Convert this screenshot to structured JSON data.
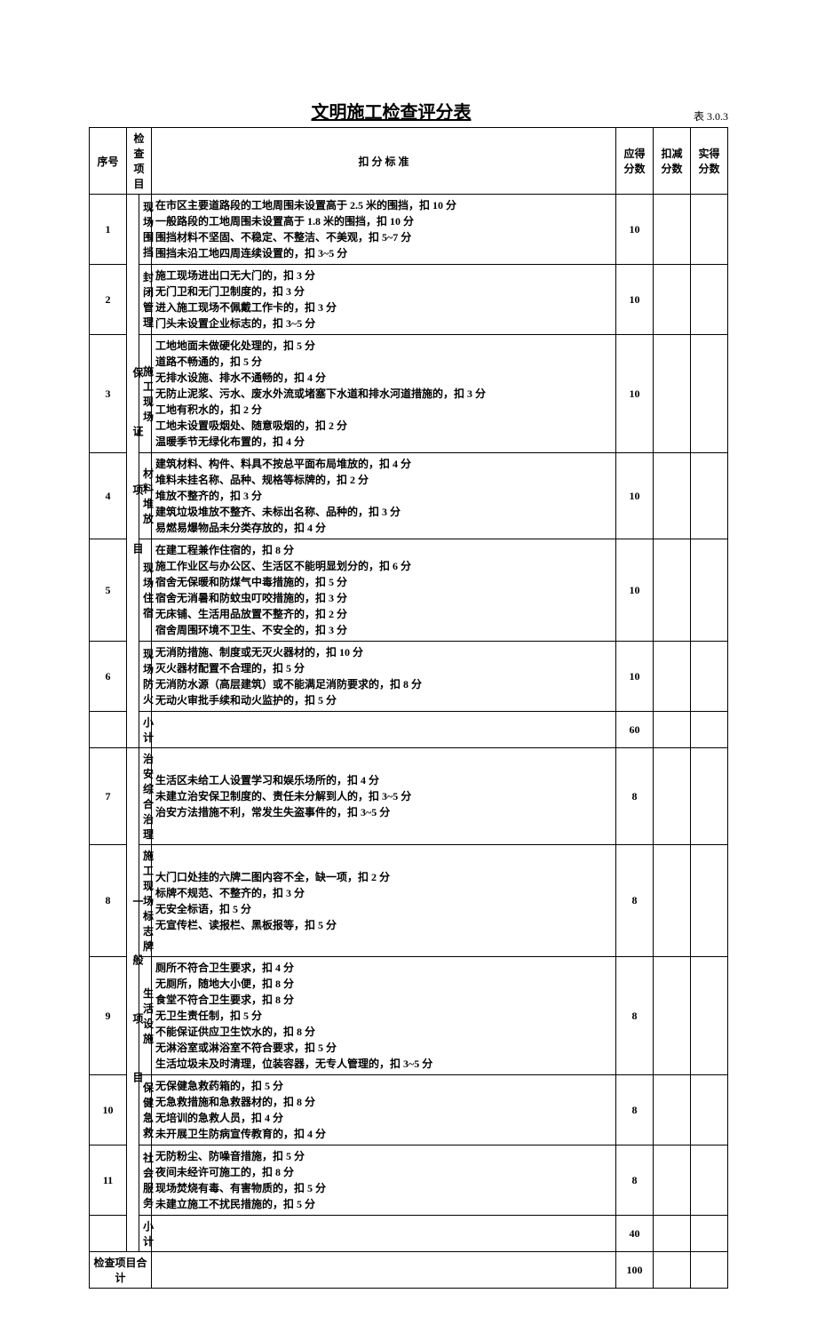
{
  "title": "文明施工检查评分表",
  "table_code": "表 3.0.3",
  "headers": {
    "seq": "序号",
    "inspect": "检查项目",
    "criteria": "扣 分 标 准",
    "should": "应得分数",
    "deduct": "扣减分数",
    "actual": "实得分数"
  },
  "group1": {
    "category": "保  证  项  目",
    "rows": [
      {
        "seq": "1",
        "item": "现场围挡",
        "criteria": "在市区主要道路段的工地周围未设置高于 2.5 米的围挡，扣 10 分\n一般路段的工地周围未设置高于 1.8 米的围挡，扣 10 分\n围挡材料不坚固、不稳定、不整洁、不美观，扣 5~7 分\n围挡未沿工地四周连续设置的，扣 3~5 分",
        "score": "10"
      },
      {
        "seq": "2",
        "item": "封闭管理",
        "criteria": "施工现场进出口无大门的，扣 3 分\n无门卫和无门卫制度的，扣 3 分\n进入施工现场不佩戴工作卡的，扣 3 分\n门头未设置企业标志的，扣 3~5 分",
        "score": "10"
      },
      {
        "seq": "3",
        "item": "施工现场",
        "criteria": "工地地面未做硬化处理的，扣 5 分\n道路不畅通的，扣 5 分\n无排水设施、排水不通畅的，扣 4 分\n无防止泥浆、污水、废水外流或堵塞下水道和排水河道措施的，扣 3 分\n工地有积水的，扣 2 分\n工地未设置吸烟处、随意吸烟的，扣 2 分\n温暖季节无绿化布置的，扣 4 分",
        "score": "10"
      },
      {
        "seq": "4",
        "item": "材料堆放",
        "criteria": "建筑材料、构件、料具不按总平面布局堆放的，扣 4 分\n堆料未挂名称、品种、规格等标牌的，扣 2 分\n堆放不整齐的，扣 3 分\n建筑垃圾堆放不整齐、未标出名称、品种的，扣 3 分\n易燃易爆物品未分类存放的，扣 4 分",
        "score": "10"
      },
      {
        "seq": "5",
        "item": "现场住宿",
        "criteria": "在建工程兼作住宿的，扣 8 分\n施工作业区与办公区、生活区不能明显划分的，扣 6 分\n宿舍无保暖和防煤气中毒措施的，扣 5 分\n宿舍无消暑和防蚊虫叮咬措施的，扣 3 分\n无床铺、生活用品放置不整齐的，扣 2 分\n宿舍周围环境不卫生、不安全的，扣 3 分",
        "score": "10"
      },
      {
        "seq": "6",
        "item": "现场防火",
        "criteria": "无消防措施、制度或无灭火器材的，扣 10 分\n灭火器材配置不合理的，扣 5 分\n无消防水源（高层建筑）或不能满足消防要求的，扣 8 分\n无动火审批手续和动火监护的，扣 5 分",
        "score": "10"
      }
    ],
    "subtotal": {
      "label": "小计",
      "score": "60"
    }
  },
  "group2": {
    "category": "一  般  项  目",
    "rows": [
      {
        "seq": "7",
        "item": "治安综合治  理",
        "criteria": "生活区未给工人设置学习和娱乐场所的，扣 4 分\n未建立治安保卫制度的、责任未分解到人的，扣 3~5 分\n治安方法措施不利，常发生失盗事件的，扣 3~5 分",
        "score": "8"
      },
      {
        "seq": "8",
        "item": "施工现场标志牌",
        "criteria": "大门口处挂的六牌二图内容不全，缺一项，扣 2 分\n标牌不规范、不整齐的，扣 3 分\n无安全标语，扣 5 分\n无宣传栏、读报栏、黑板报等，扣 5 分",
        "score": "8"
      },
      {
        "seq": "9",
        "item": "生活设施",
        "criteria": "厕所不符合卫生要求，扣 4 分\n无厕所，随地大小便，扣 8 分\n食堂不符合卫生要求，扣 8 分\n无卫生责任制，扣 5 分\n不能保证供应卫生饮水的，扣 8 分\n无淋浴室或淋浴室不符合要求，扣 5 分\n生活垃圾未及时清理，位装容器，无专人管理的，扣 3~5 分",
        "score": "8"
      },
      {
        "seq": "10",
        "item": "保健急救",
        "criteria": "无保健急救药箱的，扣 5 分\n无急救措施和急救器材的，扣 8 分\n无培训的急救人员，扣 4 分\n未开展卫生防病宣传教育的，扣 4 分",
        "score": "8"
      },
      {
        "seq": "11",
        "item": "社会服务",
        "criteria": "无防粉尘、防噪音措施，扣 5 分\n夜间未经许可施工的，扣 8 分\n现场焚烧有毒、有害物质的，扣 5 分\n未建立施工不扰民措施的，扣 5 分",
        "score": "8"
      }
    ],
    "subtotal": {
      "label": "小计",
      "score": "40"
    }
  },
  "total": {
    "label": "检查项目合计",
    "score": "100"
  }
}
